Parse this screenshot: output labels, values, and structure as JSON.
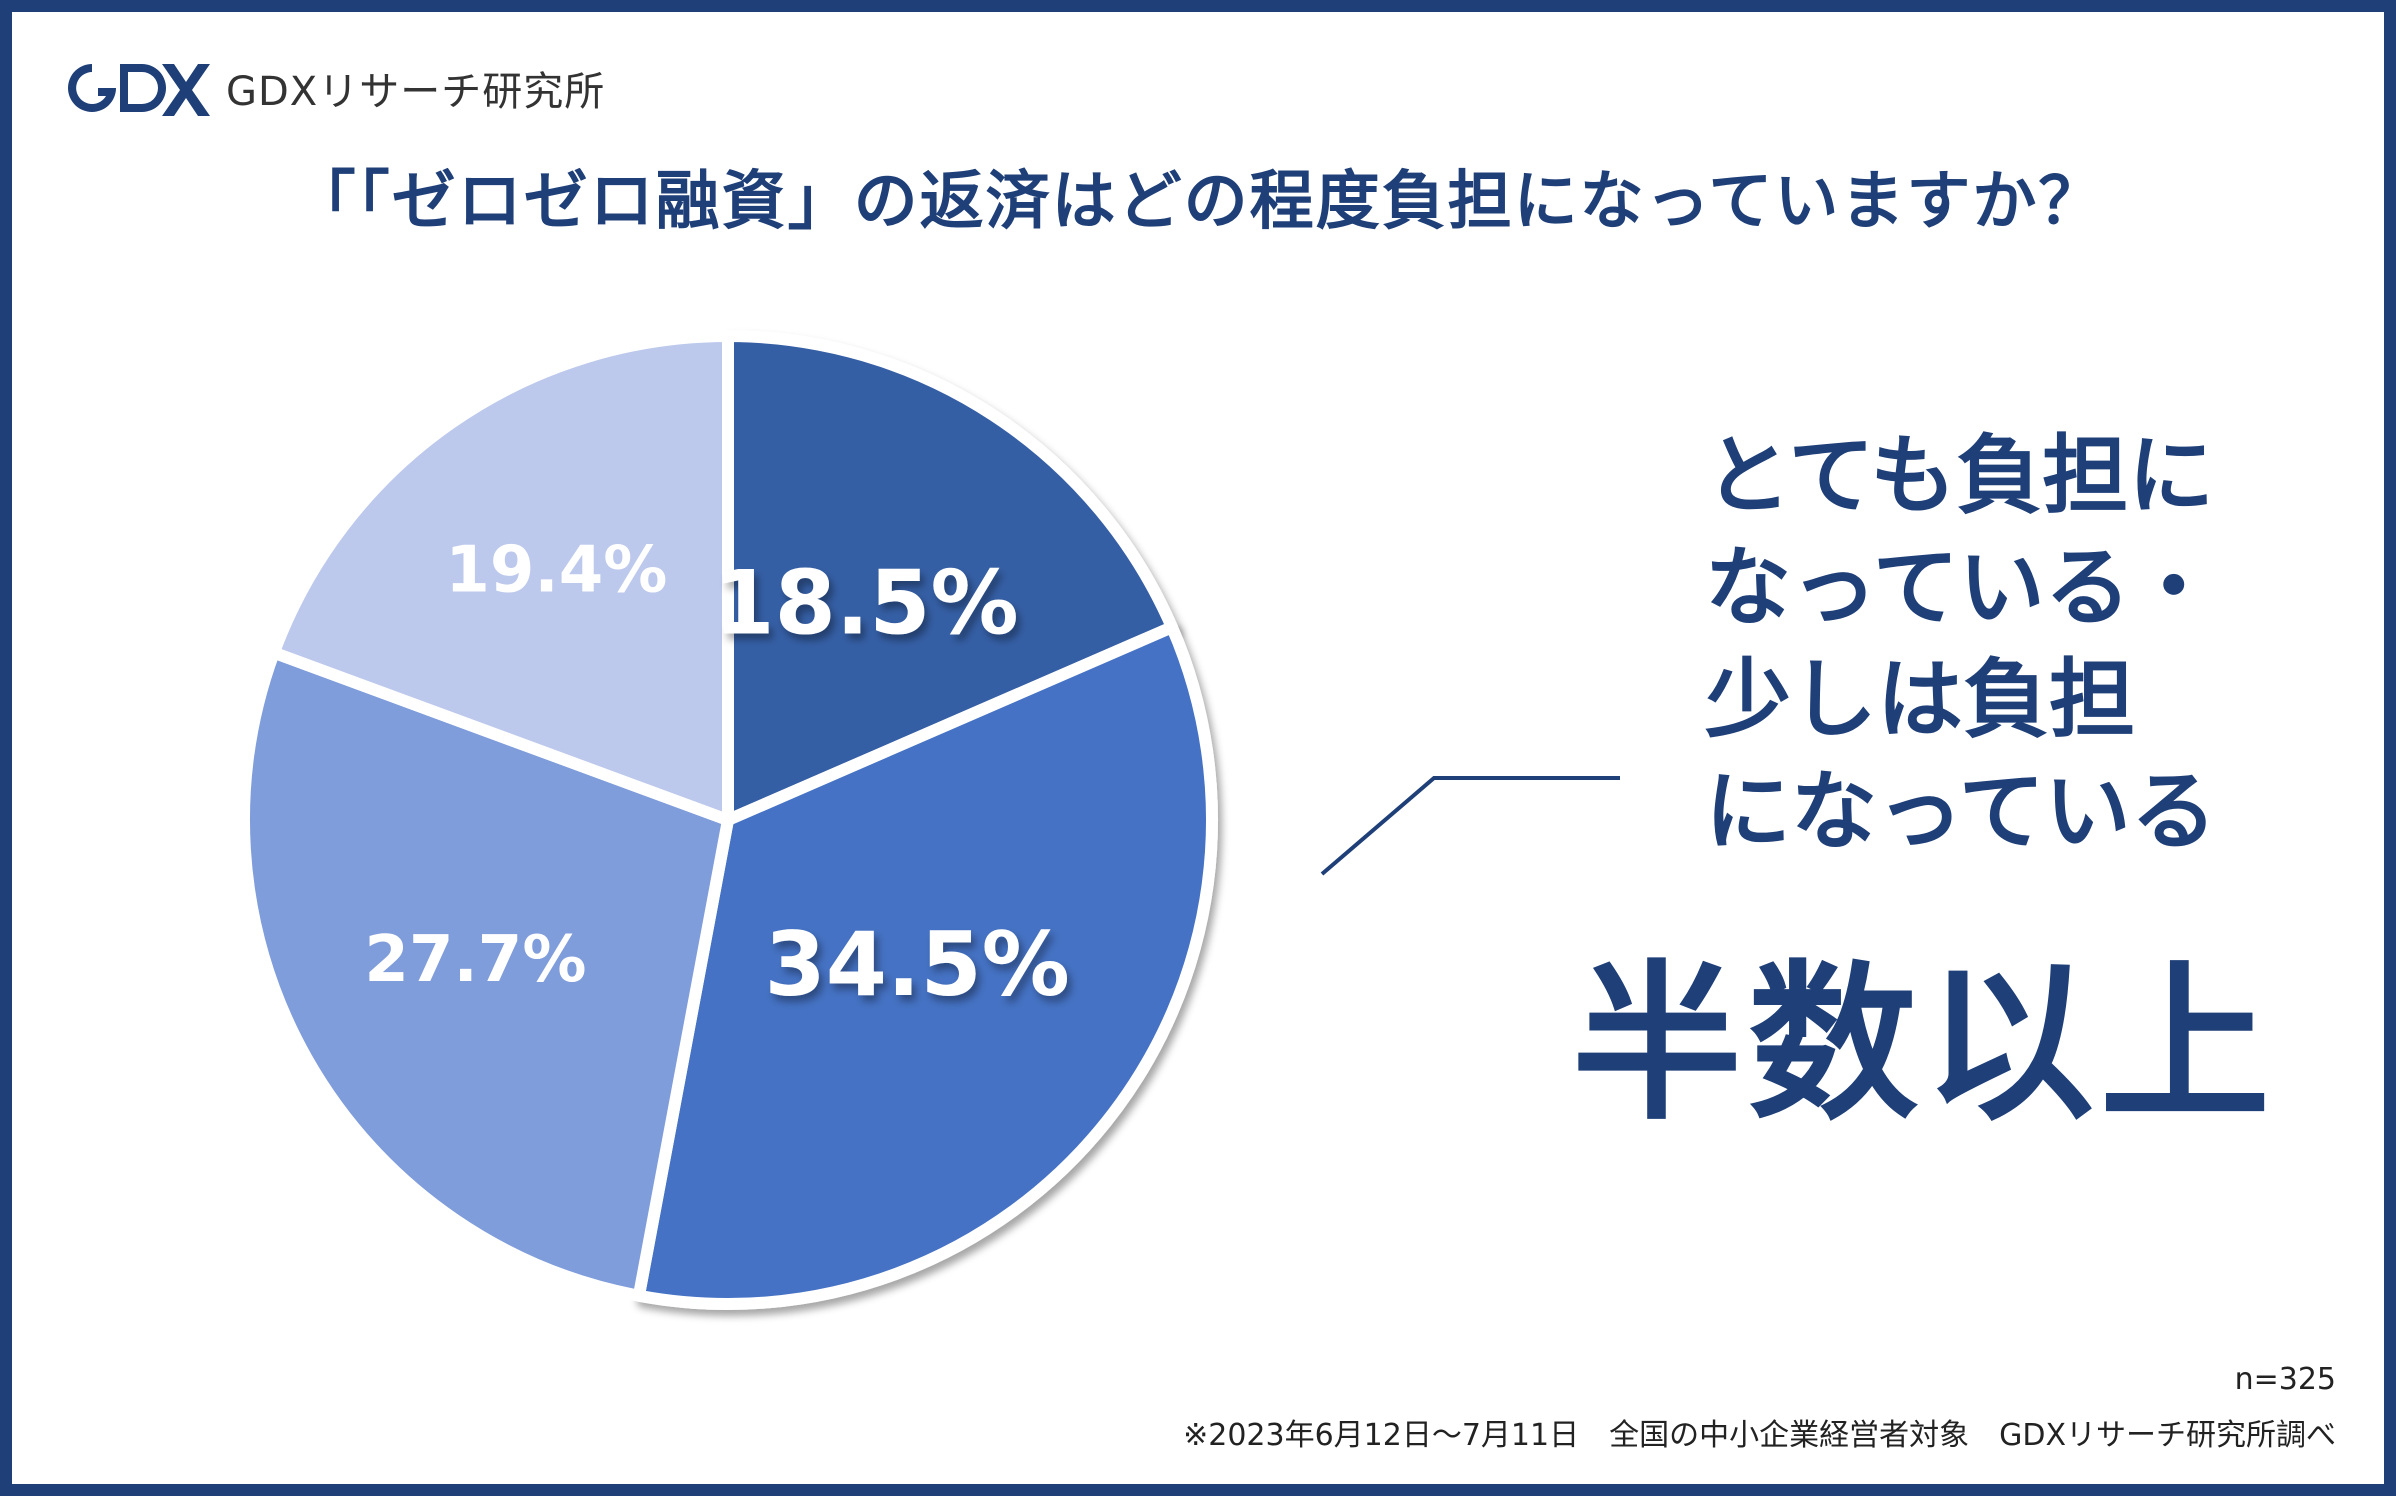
{
  "brand": {
    "name": "GDXリサーチ研究所",
    "mark_color": "#1f3f78"
  },
  "title": "「「ゼロゼロ融資」の返済はどの程度負担になっていますか？",
  "chart_data": {
    "type": "pie",
    "start_angle_deg": 0,
    "direction": "clockwise",
    "slices": [
      {
        "label": "18.5%",
        "value": 18.5,
        "color": "#365ea5"
      },
      {
        "label": "34.5%",
        "value": 34.5,
        "color": "#4472c4"
      },
      {
        "label": "27.7%",
        "value": 27.7,
        "color": "#7f9cdb"
      },
      {
        "label": "19.4%",
        "value": 19.4,
        "color": "#bcc8ec"
      }
    ],
    "separator_color": "#ffffff"
  },
  "callout": {
    "lines": [
      "とても負担に",
      "なっている・",
      "少しは負担",
      "になっている"
    ],
    "headline": "半数以上",
    "color": "#1f3f78"
  },
  "footnote": {
    "sample": "n=325",
    "source": "※2023年6月12日〜7月11日　全国の中小企業経営者対象　GDXリサーチ研究所調べ"
  }
}
